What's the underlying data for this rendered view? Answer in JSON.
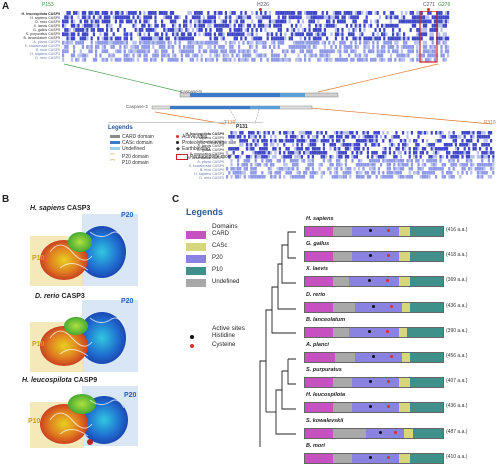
{
  "panels": {
    "a": "A",
    "b": "B",
    "c": "C"
  },
  "alignment_top": {
    "markers": [
      "P153",
      "H226",
      "C271",
      "G276"
    ],
    "labels": [
      "H. leucospilota CASP9",
      "H. sapiens CASP9",
      "D. rerio CASP9",
      "X. laevis CASP9",
      "G. gallus CASP9",
      "S. purpuratus CASP9",
      "B. lanceolatum CASP9",
      "A. planci CASP9",
      "S. kowalevskii CASP9",
      "B. mori CASP9",
      "H. sapiens CASP3",
      "D. rerio CASP3"
    ]
  },
  "alignment_bottom": {
    "markers": [
      "T139",
      "P131",
      "P318"
    ],
    "labels": [
      "H. leucospilota CASP9",
      "H. sapiens CASP9",
      "D. rerio CASP9",
      "X. laevis CASP9",
      "G. gallus CASP9",
      "S. purpuratus CASP9",
      "B. lanceolatum CASP9",
      "A. planci CASP9",
      "S. kowalevskii CASP9",
      "B. mori CASP9",
      "H. sapiens CASP3",
      "D. rerio CASP3"
    ]
  },
  "schematic_labels": [
    "Caspase-9",
    "Caspase-3"
  ],
  "legend_a": {
    "title": "Legends",
    "items": [
      "CARD domain",
      "CASc domain",
      "Undefined",
      "Active sites",
      "Proteolytic-cleavage site",
      "Earthbinding",
      "P20 domain",
      "P10 domain",
      "Pentapeptide motif"
    ]
  },
  "proteins": [
    {
      "title_species": "H. sapiens",
      "title_protein": "CASP3",
      "p10": "P10",
      "p20": "P20"
    },
    {
      "title_species": "D. rerio",
      "title_protein": "CASP3",
      "p10": "P10",
      "p20": "P20"
    },
    {
      "title_species": "H. leucospilota",
      "title_protein": "CASP9",
      "p10": "P10",
      "p20": "P20"
    }
  ],
  "legend_c": {
    "title": "Legends",
    "domains_heading": "Domains",
    "domains": [
      "CARD",
      "CASc",
      "P20",
      "P10",
      "Undefined"
    ],
    "sites_heading": "Active sites",
    "sites": [
      "Histidine",
      "Cysteine"
    ]
  },
  "domain_colors": {
    "CARD": "#c552c0",
    "CASc": "#d8d67a",
    "P20": "#8a82e0",
    "P10": "#3f8f8a",
    "Undefined": "#a8a8a8"
  },
  "site_colors": {
    "Histidine": "#111111",
    "Cysteine": "#d83030"
  },
  "species": [
    {
      "name": "H. sapiens",
      "length": "(416 a.a.)",
      "segs": [
        [
          "CARD",
          0.2
        ],
        [
          "Undefined",
          0.14
        ],
        [
          "P20",
          0.34
        ],
        [
          "CASc",
          0.08
        ],
        [
          "P10",
          0.24
        ]
      ]
    },
    {
      "name": "G. gallus",
      "length": "(418 a.a.)",
      "segs": [
        [
          "CARD",
          0.2
        ],
        [
          "Undefined",
          0.14
        ],
        [
          "P20",
          0.34
        ],
        [
          "CASc",
          0.08
        ],
        [
          "P10",
          0.24
        ]
      ]
    },
    {
      "name": "X. laevis",
      "length": "(369 a.a.)",
      "segs": [
        [
          "CARD",
          0.2
        ],
        [
          "Undefined",
          0.12
        ],
        [
          "P20",
          0.36
        ],
        [
          "CASc",
          0.08
        ],
        [
          "P10",
          0.24
        ]
      ]
    },
    {
      "name": "D. rerio",
      "length": "(436 a.a.)",
      "segs": [
        [
          "CARD",
          0.2
        ],
        [
          "Undefined",
          0.16
        ],
        [
          "P20",
          0.34
        ],
        [
          "CASc",
          0.06
        ],
        [
          "P10",
          0.24
        ]
      ]
    },
    {
      "name": "B. lanceolatum",
      "length": "(390 a.a.)",
      "segs": [
        [
          "CARD",
          0.2
        ],
        [
          "Undefined",
          0.12
        ],
        [
          "P20",
          0.36
        ],
        [
          "CASc",
          0.06
        ],
        [
          "P10",
          0.26
        ]
      ]
    },
    {
      "name": "A. planci",
      "length": "(456 a.a.)",
      "segs": [
        [
          "CARD",
          0.22
        ],
        [
          "Undefined",
          0.14
        ],
        [
          "P20",
          0.34
        ],
        [
          "CASc",
          0.06
        ],
        [
          "P10",
          0.24
        ]
      ]
    },
    {
      "name": "S. purpuratus",
      "length": "(407 a.a.)",
      "segs": [
        [
          "CARD",
          0.2
        ],
        [
          "Undefined",
          0.14
        ],
        [
          "P20",
          0.34
        ],
        [
          "CASc",
          0.08
        ],
        [
          "P10",
          0.24
        ]
      ]
    },
    {
      "name": "H. leucospilota",
      "length": "(436 a.a.)",
      "segs": [
        [
          "CARD",
          0.2
        ],
        [
          "Undefined",
          0.14
        ],
        [
          "P20",
          0.34
        ],
        [
          "CASc",
          0.08
        ],
        [
          "P10",
          0.24
        ]
      ]
    },
    {
      "name": "S. kowalevskii",
      "length": "(487 a.a.)",
      "segs": [
        [
          "CARD",
          0.2
        ],
        [
          "Undefined",
          0.24
        ],
        [
          "P20",
          0.28
        ],
        [
          "CASc",
          0.06
        ],
        [
          "P10",
          0.22
        ]
      ]
    },
    {
      "name": "B. mori",
      "length": "(410 a.a.)",
      "segs": [
        [
          "CARD",
          0.2
        ],
        [
          "Undefined",
          0.14
        ],
        [
          "P20",
          0.34
        ],
        [
          "CASc",
          0.08
        ],
        [
          "P10",
          0.24
        ]
      ]
    }
  ]
}
